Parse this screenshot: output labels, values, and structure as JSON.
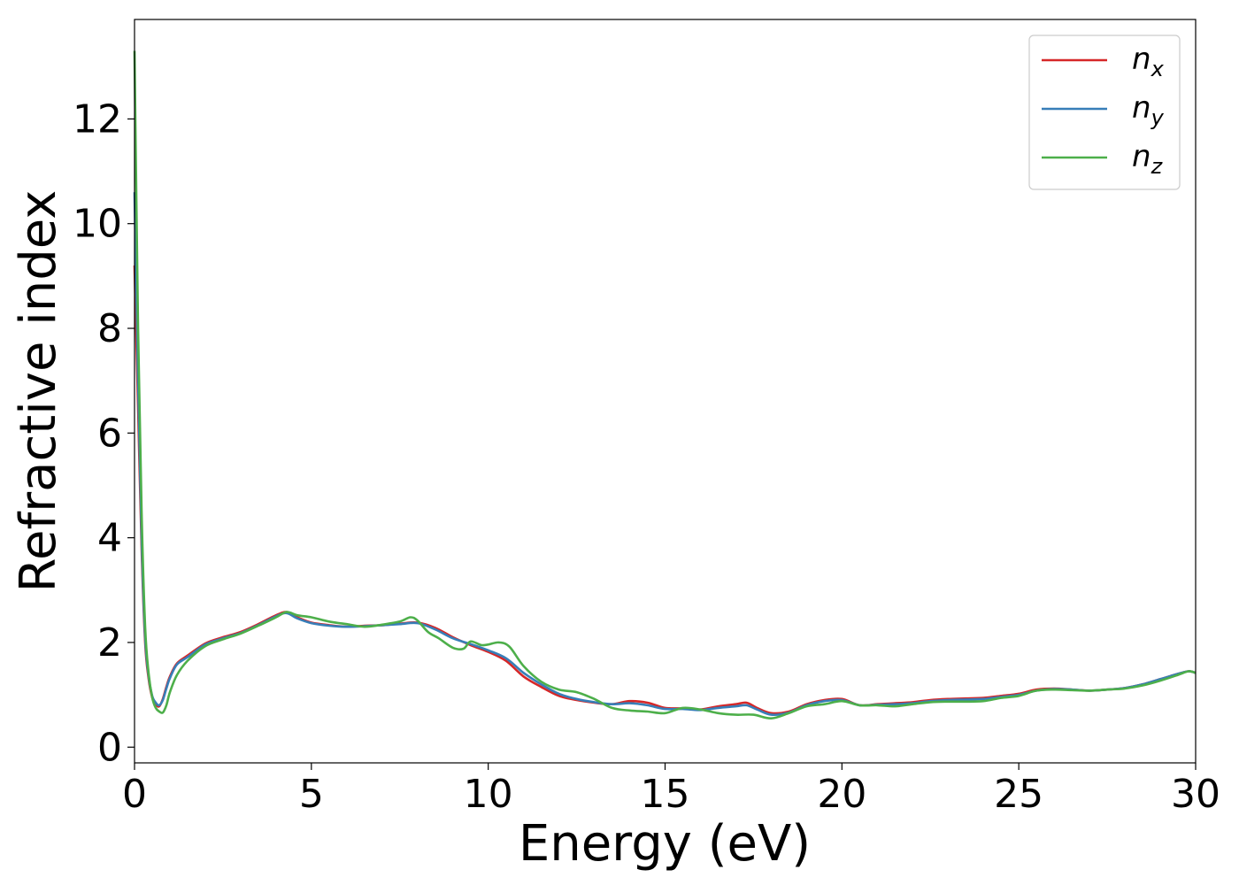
{
  "chart_data": {
    "type": "line",
    "xlabel": "Energy (eV)",
    "ylabel": "Refractive index",
    "xlim": [
      0,
      30
    ],
    "ylim": [
      -0.3,
      13.9
    ],
    "xticks": [
      0,
      5,
      10,
      15,
      20,
      25,
      30
    ],
    "yticks": [
      0,
      2,
      4,
      6,
      8,
      10,
      12
    ],
    "grid": false,
    "legend_position": "top-right",
    "series": [
      {
        "name": "n_x",
        "label_base": "n",
        "label_sub": "x",
        "color": "#d62728",
        "x": [
          0.0,
          0.1,
          0.2,
          0.3,
          0.4,
          0.5,
          0.6,
          0.7,
          0.8,
          0.9,
          1.0,
          1.2,
          1.5,
          2.0,
          2.5,
          3.0,
          3.5,
          4.0,
          4.3,
          4.6,
          5.0,
          5.5,
          6.0,
          6.5,
          7.0,
          7.5,
          8.0,
          8.5,
          9.0,
          9.5,
          10.0,
          10.5,
          11.0,
          11.5,
          12.0,
          12.5,
          13.0,
          13.5,
          14.0,
          14.5,
          15.0,
          15.5,
          16.0,
          16.5,
          17.0,
          17.3,
          17.6,
          18.0,
          18.5,
          19.0,
          19.5,
          20.0,
          20.5,
          21.0,
          21.5,
          22.0,
          22.5,
          23.0,
          23.5,
          24.0,
          24.5,
          25.0,
          25.5,
          26.0,
          26.5,
          27.0,
          27.5,
          28.0,
          28.5,
          29.0,
          29.5,
          29.8,
          30.0
        ],
        "y": [
          9.2,
          6.5,
          3.8,
          2.0,
          1.3,
          0.95,
          0.82,
          0.78,
          0.92,
          1.15,
          1.35,
          1.6,
          1.75,
          1.98,
          2.1,
          2.2,
          2.35,
          2.52,
          2.58,
          2.48,
          2.38,
          2.33,
          2.3,
          2.32,
          2.33,
          2.36,
          2.38,
          2.28,
          2.1,
          1.95,
          1.82,
          1.65,
          1.35,
          1.15,
          0.98,
          0.9,
          0.85,
          0.82,
          0.88,
          0.85,
          0.75,
          0.74,
          0.72,
          0.78,
          0.82,
          0.85,
          0.75,
          0.65,
          0.68,
          0.82,
          0.9,
          0.92,
          0.8,
          0.82,
          0.84,
          0.86,
          0.9,
          0.92,
          0.93,
          0.94,
          0.98,
          1.02,
          1.1,
          1.12,
          1.1,
          1.08,
          1.1,
          1.13,
          1.2,
          1.3,
          1.4,
          1.45,
          1.42
        ]
      },
      {
        "name": "n_y",
        "label_base": "n",
        "label_sub": "y",
        "color": "#377eb8",
        "x": [
          0.0,
          0.1,
          0.2,
          0.3,
          0.4,
          0.5,
          0.6,
          0.7,
          0.8,
          0.9,
          1.0,
          1.2,
          1.5,
          2.0,
          2.5,
          3.0,
          3.5,
          4.0,
          4.3,
          4.6,
          5.0,
          5.5,
          6.0,
          6.5,
          7.0,
          7.5,
          8.0,
          8.5,
          9.0,
          9.5,
          10.0,
          10.5,
          11.0,
          11.5,
          12.0,
          12.5,
          13.0,
          13.5,
          14.0,
          14.5,
          15.0,
          15.5,
          16.0,
          16.5,
          17.0,
          17.3,
          17.6,
          18.0,
          18.5,
          19.0,
          19.5,
          20.0,
          20.5,
          21.0,
          21.5,
          22.0,
          22.5,
          23.0,
          23.5,
          24.0,
          24.5,
          25.0,
          25.5,
          26.0,
          26.5,
          27.0,
          27.5,
          28.0,
          28.5,
          29.0,
          29.5,
          29.8,
          30.0
        ],
        "y": [
          10.6,
          7.0,
          4.0,
          2.1,
          1.35,
          0.98,
          0.85,
          0.8,
          0.9,
          1.12,
          1.32,
          1.58,
          1.72,
          1.96,
          2.08,
          2.18,
          2.33,
          2.5,
          2.56,
          2.46,
          2.37,
          2.32,
          2.3,
          2.31,
          2.33,
          2.35,
          2.37,
          2.25,
          2.08,
          1.97,
          1.85,
          1.7,
          1.42,
          1.2,
          1.02,
          0.92,
          0.86,
          0.82,
          0.84,
          0.8,
          0.73,
          0.73,
          0.71,
          0.75,
          0.78,
          0.8,
          0.72,
          0.62,
          0.66,
          0.8,
          0.88,
          0.9,
          0.8,
          0.81,
          0.82,
          0.84,
          0.88,
          0.9,
          0.91,
          0.92,
          0.96,
          1.0,
          1.08,
          1.11,
          1.1,
          1.08,
          1.1,
          1.13,
          1.2,
          1.3,
          1.4,
          1.45,
          1.42
        ]
      },
      {
        "name": "n_z",
        "label_base": "n",
        "label_sub": "z",
        "color": "#4daf4a",
        "x": [
          0.0,
          0.1,
          0.2,
          0.3,
          0.4,
          0.5,
          0.6,
          0.7,
          0.8,
          0.9,
          1.0,
          1.2,
          1.5,
          2.0,
          2.5,
          3.0,
          3.5,
          4.0,
          4.3,
          4.6,
          5.0,
          5.5,
          6.0,
          6.5,
          7.0,
          7.5,
          7.8,
          8.0,
          8.3,
          8.6,
          9.0,
          9.3,
          9.5,
          9.8,
          10.0,
          10.3,
          10.6,
          11.0,
          11.5,
          12.0,
          12.5,
          13.0,
          13.5,
          14.0,
          14.5,
          15.0,
          15.5,
          16.0,
          16.5,
          17.0,
          17.5,
          18.0,
          18.5,
          19.0,
          19.5,
          20.0,
          20.5,
          21.0,
          21.5,
          22.0,
          22.5,
          23.0,
          23.5,
          24.0,
          24.5,
          25.0,
          25.5,
          26.0,
          26.5,
          27.0,
          27.5,
          28.0,
          28.5,
          29.0,
          29.5,
          29.8,
          30.0
        ],
        "y": [
          13.3,
          8.0,
          4.5,
          2.3,
          1.4,
          0.95,
          0.75,
          0.68,
          0.66,
          0.8,
          1.05,
          1.38,
          1.65,
          1.93,
          2.06,
          2.17,
          2.32,
          2.48,
          2.58,
          2.52,
          2.48,
          2.4,
          2.35,
          2.3,
          2.34,
          2.4,
          2.48,
          2.42,
          2.2,
          2.08,
          1.9,
          1.88,
          2.02,
          1.95,
          1.96,
          2.0,
          1.92,
          1.55,
          1.25,
          1.1,
          1.05,
          0.92,
          0.75,
          0.7,
          0.68,
          0.65,
          0.75,
          0.72,
          0.65,
          0.62,
          0.62,
          0.55,
          0.65,
          0.78,
          0.82,
          0.88,
          0.8,
          0.8,
          0.78,
          0.82,
          0.86,
          0.87,
          0.87,
          0.88,
          0.94,
          0.98,
          1.08,
          1.1,
          1.09,
          1.08,
          1.1,
          1.12,
          1.18,
          1.27,
          1.38,
          1.45,
          1.42
        ]
      }
    ]
  }
}
